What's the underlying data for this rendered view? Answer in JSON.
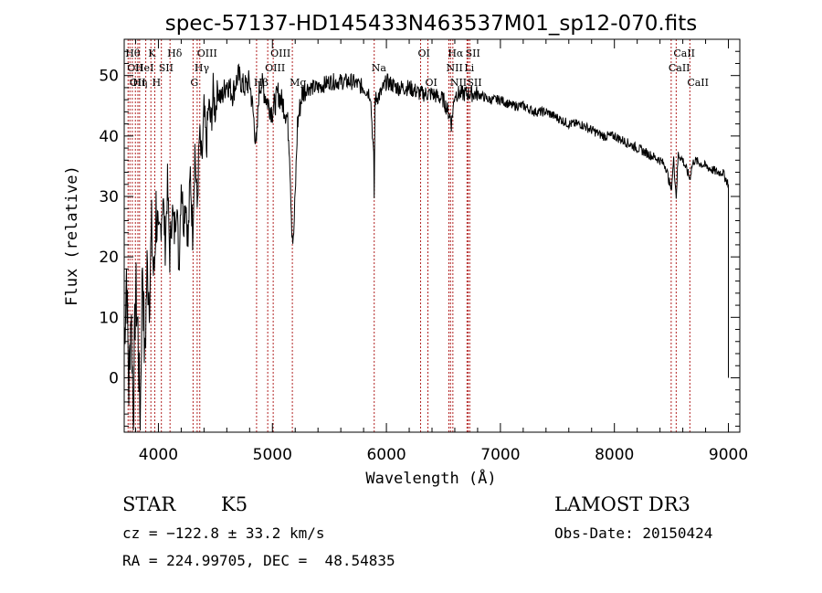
{
  "chart_data": {
    "type": "line",
    "title": "spec-57137-HD145433N463537M01_sp12-070.fits",
    "xlabel": "Wavelength (Å)",
    "ylabel": "Flux (relative)",
    "xlim": [
      3700,
      9100
    ],
    "ylim": [
      -9,
      56
    ],
    "xticks": [
      4000,
      5000,
      6000,
      7000,
      8000,
      9000
    ],
    "yticks": [
      0,
      10,
      20,
      30,
      40,
      50
    ],
    "series": [
      {
        "name": "spectrum",
        "x": [
          3700,
          3720,
          3740,
          3760,
          3780,
          3800,
          3820,
          3840,
          3860,
          3880,
          3900,
          3920,
          3940,
          3960,
          3980,
          4000,
          4020,
          4040,
          4060,
          4080,
          4100,
          4120,
          4140,
          4160,
          4180,
          4200,
          4220,
          4240,
          4260,
          4280,
          4300,
          4320,
          4340,
          4360,
          4380,
          4400,
          4420,
          4440,
          4460,
          4480,
          4500,
          4520,
          4550,
          4600,
          4650,
          4700,
          4750,
          4800,
          4830,
          4860,
          4880,
          4900,
          4950,
          5000,
          5050,
          5100,
          5130,
          5150,
          5170,
          5183,
          5200,
          5220,
          5260,
          5300,
          5400,
          5500,
          5560,
          5600,
          5700,
          5800,
          5860,
          5889,
          5893,
          5900,
          5950,
          6000,
          6100,
          6200,
          6300,
          6400,
          6500,
          6563,
          6570,
          6600,
          6700,
          6800,
          6900,
          7000,
          7100,
          7200,
          7300,
          7400,
          7500,
          7600,
          7700,
          7800,
          7900,
          8000,
          8100,
          8200,
          8300,
          8400,
          8450,
          8498,
          8520,
          8542,
          8560,
          8600,
          8662,
          8680,
          8700,
          8800,
          8900,
          8950,
          9000
        ],
        "y": [
          5,
          18,
          -2,
          12,
          -6,
          15,
          8,
          -8,
          20,
          2,
          18,
          14,
          24,
          16,
          28,
          22,
          25,
          30,
          22,
          32,
          20,
          28,
          24,
          30,
          18,
          33,
          26,
          30,
          22,
          34,
          24,
          38,
          28,
          40,
          35,
          44,
          38,
          45,
          42,
          47,
          44,
          48,
          46,
          49,
          47,
          50,
          48,
          49,
          44,
          38,
          47,
          49,
          46,
          44,
          47,
          45,
          43,
          38,
          25,
          22,
          30,
          42,
          47,
          48,
          48,
          49,
          49,
          49,
          49,
          48,
          47,
          36,
          30,
          46,
          47,
          49,
          48,
          48,
          47,
          47,
          46,
          43,
          42,
          47,
          47,
          47,
          46,
          46,
          45,
          45,
          44,
          44,
          43,
          42,
          42,
          41,
          40,
          40,
          39,
          38,
          37,
          36,
          35,
          31,
          36,
          30,
          37,
          36,
          33,
          35,
          36,
          35,
          34,
          34,
          32
        ]
      }
    ],
    "line_markers": [
      {
        "wave": 3734,
        "label": "Hθ",
        "row": 0
      },
      {
        "wave": 3750,
        "label": "OII",
        "row": 1
      },
      {
        "wave": 3771,
        "label": "OII",
        "row": 2
      },
      {
        "wave": 3798,
        "label": "Hη",
        "row": 2
      },
      {
        "wave": 3820,
        "label": "HeI",
        "row": 1
      },
      {
        "wave": 3835,
        "label": "",
        "row": 0
      },
      {
        "wave": 3889,
        "label": "",
        "row": 0
      },
      {
        "wave": 3934,
        "label": "K",
        "row": 0
      },
      {
        "wave": 3968,
        "label": "H",
        "row": 2
      },
      {
        "wave": 4026,
        "label": "SII",
        "row": 1
      },
      {
        "wave": 4102,
        "label": "Hδ",
        "row": 0
      },
      {
        "wave": 4304,
        "label": "G",
        "row": 2
      },
      {
        "wave": 4340,
        "label": "Hγ",
        "row": 1
      },
      {
        "wave": 4363,
        "label": "OIII",
        "row": 0
      },
      {
        "wave": 4861,
        "label": "Hβ",
        "row": 2
      },
      {
        "wave": 4959,
        "label": "OIII",
        "row": 1
      },
      {
        "wave": 5007,
        "label": "OIII",
        "row": 0
      },
      {
        "wave": 5175,
        "label": "Mg",
        "row": 2
      },
      {
        "wave": 5893,
        "label": "Na",
        "row": 1
      },
      {
        "wave": 6300,
        "label": "OI",
        "row": 0
      },
      {
        "wave": 6364,
        "label": "OI",
        "row": 2
      },
      {
        "wave": 6548,
        "label": "NII",
        "row": 1
      },
      {
        "wave": 6563,
        "label": "Hα",
        "row": 0
      },
      {
        "wave": 6583,
        "label": "NII",
        "row": 2
      },
      {
        "wave": 6707,
        "label": "Li",
        "row": 1
      },
      {
        "wave": 6717,
        "label": "SII",
        "row": 0
      },
      {
        "wave": 6731,
        "label": "SII",
        "row": 2
      },
      {
        "wave": 8498,
        "label": "CaII",
        "row": 1
      },
      {
        "wave": 8542,
        "label": "CaII",
        "row": 0
      },
      {
        "wave": 8662,
        "label": "CaII",
        "row": 2
      }
    ]
  },
  "info": {
    "class_label": "STAR",
    "subclass": "K5",
    "survey": "LAMOST DR3",
    "redshift": "cz = −122.8 ± 33.2 km/s",
    "obs_date": "Obs-Date: 20150424",
    "coords": "RA = 224.99705, DEC =  48.54835"
  },
  "colors": {
    "line_marker": "#b22222",
    "spectrum": "#000000",
    "axes": "#000000"
  }
}
